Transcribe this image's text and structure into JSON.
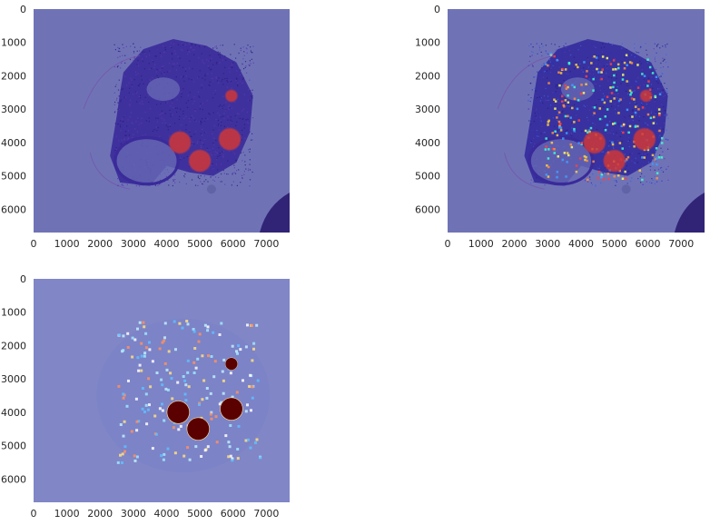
{
  "figure": {
    "layout": "2x2 grid with 3 panels (bottom-right empty)"
  },
  "chart_data": [
    {
      "type": "heatmap",
      "panel": "top-left",
      "title": "",
      "description": "tissue image with red tumor-region overlay on blue colormap",
      "xlim": [
        0,
        7700
      ],
      "ylim": [
        6700,
        0
      ],
      "xticks": [
        0,
        1000,
        2000,
        3000,
        4000,
        5000,
        6000,
        7000
      ],
      "yticks": [
        0,
        1000,
        2000,
        3000,
        4000,
        5000,
        6000
      ],
      "xtick_labels": [
        "0",
        "1000",
        "2000",
        "3000",
        "4000",
        "5000",
        "6000",
        "7000"
      ],
      "ytick_labels": [
        "0",
        "1000",
        "2000",
        "3000",
        "4000",
        "5000",
        "6000"
      ],
      "hotspots": [
        {
          "x": 4400,
          "y": 4000,
          "level": "high"
        },
        {
          "x": 5000,
          "y": 4550,
          "level": "high"
        },
        {
          "x": 5900,
          "y": 3900,
          "level": "high"
        },
        {
          "x": 5950,
          "y": 2600,
          "level": "high"
        }
      ]
    },
    {
      "type": "heatmap",
      "panel": "top-right",
      "title": "",
      "description": "tissue image with tumor regions plus scattered heatmap activations",
      "xlim": [
        0,
        7700
      ],
      "ylim": [
        6700,
        0
      ],
      "xticks": [
        0,
        1000,
        2000,
        3000,
        4000,
        5000,
        6000,
        7000
      ],
      "yticks": [
        0,
        1000,
        2000,
        3000,
        4000,
        5000,
        6000
      ],
      "xtick_labels": [
        "0",
        "1000",
        "2000",
        "3000",
        "4000",
        "5000",
        "6000",
        "7000"
      ],
      "ytick_labels": [
        "0",
        "1000",
        "2000",
        "3000",
        "4000",
        "5000",
        "6000"
      ],
      "hotspots": [
        {
          "x": 4400,
          "y": 4000,
          "level": "high"
        },
        {
          "x": 5000,
          "y": 4550,
          "level": "high"
        },
        {
          "x": 5900,
          "y": 3900,
          "level": "high"
        },
        {
          "x": 5950,
          "y": 2600,
          "level": "high"
        }
      ]
    },
    {
      "type": "heatmap",
      "panel": "bottom-left",
      "title": "",
      "description": "heatmap only, dark-red segmented tumor regions and scattered activations",
      "xlim": [
        0,
        7700
      ],
      "ylim": [
        6700,
        0
      ],
      "xticks": [
        0,
        1000,
        2000,
        3000,
        4000,
        5000,
        6000,
        7000
      ],
      "yticks": [
        0,
        1000,
        2000,
        3000,
        4000,
        5000,
        6000
      ],
      "xtick_labels": [
        "0",
        "1000",
        "2000",
        "3000",
        "4000",
        "5000",
        "6000",
        "7000"
      ],
      "ytick_labels": [
        "0",
        "1000",
        "2000",
        "3000",
        "4000",
        "5000",
        "6000"
      ],
      "hotspots": [
        {
          "x": 4350,
          "y": 4000,
          "level": "max"
        },
        {
          "x": 4950,
          "y": 4500,
          "level": "max"
        },
        {
          "x": 5950,
          "y": 3900,
          "level": "max"
        },
        {
          "x": 5950,
          "y": 2550,
          "level": "max"
        }
      ]
    }
  ]
}
